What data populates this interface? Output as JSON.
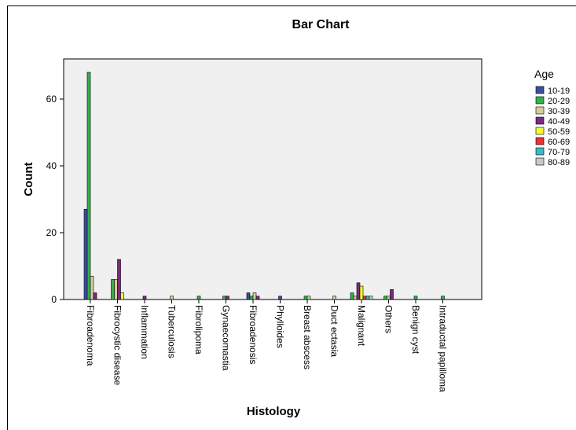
{
  "chart_data": {
    "type": "bar",
    "title": "Bar Chart",
    "xlabel": "Histology",
    "ylabel": "Count",
    "ylim": [
      0,
      72
    ],
    "yticks": [
      0,
      20,
      40,
      60
    ],
    "legend_title": "Age",
    "legend_position": "right",
    "categories": [
      "Fibroadenoma",
      "Fibrocystic disease",
      "Inflammation",
      "Tuberculosis",
      "Fibrolipoma",
      "Gynaecomastia",
      "Fibroadenosis",
      "Phylloides",
      "Breast abscess",
      "Duct ectasia",
      "Malignant",
      "Others",
      "Benign cyst",
      "Intraductal papilloma"
    ],
    "series": [
      {
        "name": "10-19",
        "color": "#3b4fa0",
        "values": [
          27,
          0,
          0,
          0,
          0,
          0,
          2,
          1,
          0,
          0,
          0,
          0,
          0,
          0
        ]
      },
      {
        "name": "20-29",
        "color": "#2fb34a",
        "values": [
          68,
          6,
          0,
          0,
          1,
          1,
          1,
          0,
          1,
          0,
          2,
          1,
          1,
          1
        ]
      },
      {
        "name": "30-39",
        "color": "#d6cc9c",
        "values": [
          7,
          6,
          0,
          1,
          0,
          0,
          2,
          0,
          1,
          1,
          1,
          1,
          0,
          0
        ]
      },
      {
        "name": "40-49",
        "color": "#7a2a80",
        "values": [
          2,
          12,
          1,
          0,
          0,
          1,
          1,
          0,
          0,
          0,
          5,
          3,
          0,
          0
        ]
      },
      {
        "name": "50-59",
        "color": "#f7f73a",
        "values": [
          0,
          2,
          0,
          0,
          0,
          0,
          0,
          0,
          0,
          0,
          4,
          0,
          0,
          0
        ]
      },
      {
        "name": "60-69",
        "color": "#e8343a",
        "values": [
          0,
          0,
          0,
          0,
          0,
          0,
          0,
          0,
          0,
          0,
          1,
          0,
          0,
          0
        ]
      },
      {
        "name": "70-79",
        "color": "#3fb8bf",
        "values": [
          0,
          0,
          0,
          0,
          0,
          0,
          0,
          0,
          0,
          0,
          1,
          0,
          0,
          0
        ]
      },
      {
        "name": "80-89",
        "color": "#c8c8c8",
        "values": [
          0,
          0,
          0,
          0,
          0,
          0,
          0,
          0,
          0,
          0,
          1,
          0,
          0,
          0
        ]
      }
    ],
    "grid": false,
    "plot_background": "#f0f0f0"
  }
}
